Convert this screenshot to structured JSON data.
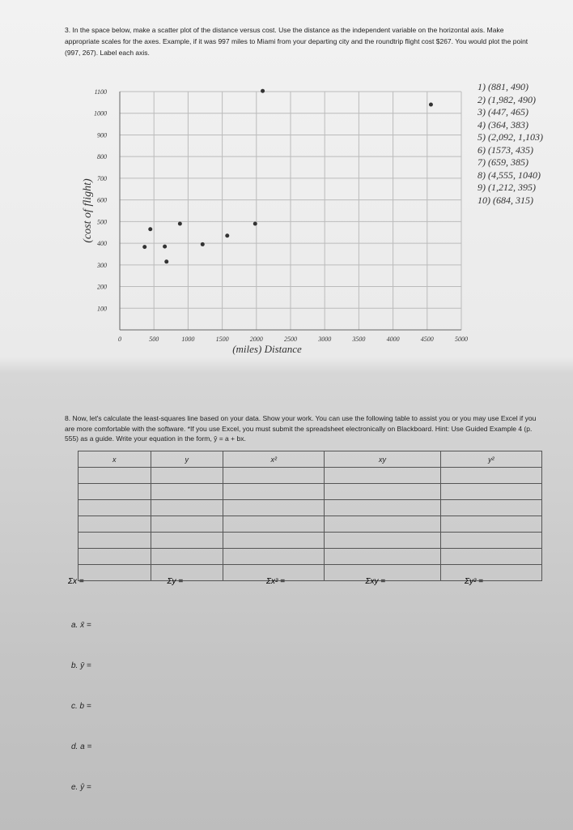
{
  "question3": {
    "number": "3.",
    "text": "In the space below, make a scatter plot of the distance versus cost. Use the distance as the independent variable on the horizontal axis. Make appropriate scales for the axes. Example, if it was 997 miles to Miami from your departing city and the roundtrip flight cost $267. You would plot the point (997, 267). Label each axis."
  },
  "plot": {
    "y_axis_label": "(cost of flight)",
    "x_axis_label": "(miles) Distance",
    "xlim": [
      0,
      5000
    ],
    "ylim": [
      0,
      1100
    ],
    "xticks": [
      0,
      500,
      1000,
      1500,
      2000,
      2500,
      3000,
      3500,
      4000,
      4500,
      5000
    ],
    "yticks": [
      100,
      200,
      300,
      400,
      500,
      600,
      700,
      800,
      900,
      1000,
      1100
    ],
    "points": {
      "x": [
        881,
        1982,
        447,
        364,
        2092,
        1573,
        659,
        4555,
        1212,
        684
      ],
      "y": [
        490,
        490,
        465,
        383,
        1103,
        435,
        385,
        1040,
        395,
        315
      ]
    },
    "point_list": [
      "1) (881, 490)",
      "2) (1,982, 490)",
      "3) (447, 465)",
      "4) (364, 383)",
      "5) (2,092, 1,103)",
      "6) (1573, 435)",
      "7) (659, 385)",
      "8) (4,555, 1040)",
      "9) (1,212, 395)",
      "10) (684, 315)"
    ]
  },
  "question8": {
    "number": "8.",
    "text": "Now, let's calculate the least-squares line based on your data. Show your work. You can use the following table to assist you or you may use Excel if you are more comfortable with the software. *If you use Excel, you must submit the spreadsheet electronically on Blackboard. Hint: Use Guided Example 4 (p. 555) as a guide. Write your equation in the form, ŷ = a + bx."
  },
  "table": {
    "headers": [
      "x",
      "y",
      "x²",
      "xy",
      "y²"
    ],
    "sums": [
      "Σx =",
      "Σy =",
      "Σx² =",
      "Σxy =",
      "Σy² ="
    ]
  },
  "items": [
    "a.  x̄ =",
    "b.  ȳ =",
    "c.  b =",
    "d.  a =",
    "e.  ŷ ="
  ]
}
